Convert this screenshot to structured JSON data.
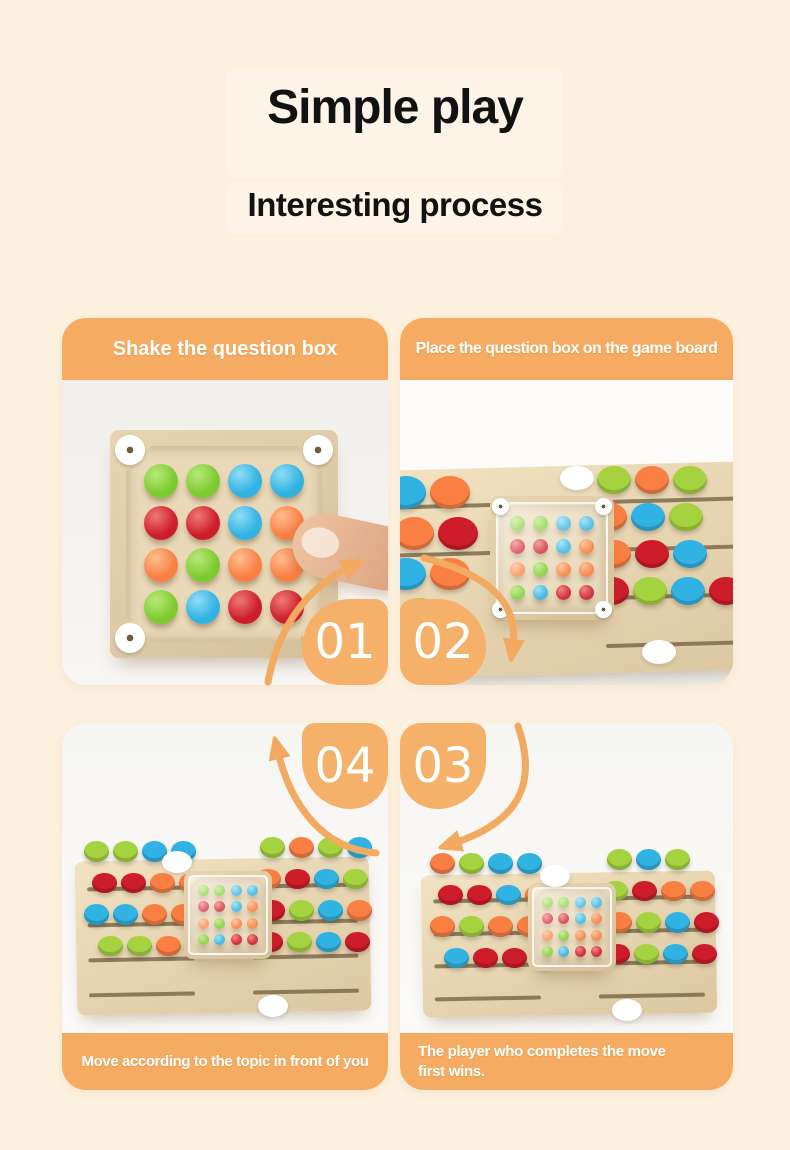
{
  "header": {
    "title": "Simple play",
    "subtitle": "Interesting process"
  },
  "panels": {
    "tl": {
      "number": "01",
      "caption": "Shake the question box"
    },
    "tr": {
      "number": "02",
      "caption": "Place the question box on the game board"
    },
    "bl": {
      "number": "04",
      "caption": "Move according to the topic in front of you"
    },
    "br": {
      "number": "03",
      "caption": "The player who completes the move first wins."
    }
  },
  "question_box_grid": [
    "green",
    "green",
    "blue",
    "blue",
    "red",
    "red",
    "blue",
    "orange",
    "orange",
    "green",
    "orange",
    "orange",
    "green",
    "blue",
    "red",
    "red"
  ],
  "boards": {
    "tr": {
      "left": [
        [
          "blue",
          "orange"
        ],
        [
          "orange",
          "red"
        ],
        [
          "blue",
          "orange"
        ],
        [
          "lime"
        ]
      ],
      "right": [
        [
          "lime",
          "orange",
          "lime"
        ],
        [
          "orange",
          "blue",
          "lime"
        ],
        [
          "orange",
          "red",
          "blue"
        ],
        [
          "red",
          "lime",
          "blue",
          "red"
        ]
      ]
    },
    "bl": {
      "left": [
        [
          "lime",
          "lime",
          "blue",
          "blue"
        ],
        [
          "red",
          "red",
          "orange",
          "orange"
        ],
        [
          "blue",
          "blue",
          "orange",
          "orange"
        ],
        [
          "lime",
          "lime",
          "orange",
          "red"
        ]
      ],
      "right": [
        [
          "lime",
          "orange",
          "lime",
          "blue"
        ],
        [
          "orange",
          "red",
          "blue",
          "lime"
        ],
        [
          "red",
          "lime",
          "blue",
          "orange"
        ],
        [
          "red",
          "lime",
          "blue",
          "red"
        ]
      ]
    },
    "br": {
      "left": [
        [
          "orange",
          "lime",
          "blue",
          "blue"
        ],
        [
          "red",
          "red",
          "blue",
          "orange"
        ],
        [
          "orange",
          "lime",
          "orange",
          "orange"
        ],
        [
          "blue",
          "red",
          "red",
          "orange"
        ]
      ],
      "right": [
        [
          "lime",
          "blue",
          "lime"
        ],
        [
          "lime",
          "red",
          "orange",
          "orange"
        ],
        [
          "orange",
          "lime",
          "blue",
          "red"
        ],
        [
          "red",
          "lime",
          "blue",
          "red"
        ]
      ]
    }
  },
  "palette": {
    "page_bg": "#fcf0de",
    "banner_orange": "#f5ab61",
    "badge_orange": "#f5b169",
    "arrow_orange": "#f2aa60",
    "panel_bg": "#f5f4f1",
    "wood_light": "#f1e2c1",
    "wood_dark": "#dcc7a1",
    "slot_brown": "#6f5d3c",
    "ball": {
      "green": [
        "#7ccb2e",
        "#b9e87a"
      ],
      "lime": [
        "#a5d23f",
        "#d5ec8c"
      ],
      "blue": [
        "#30b2e2",
        "#8fdcf4"
      ],
      "red": [
        "#cd1c2a",
        "#ef7a75"
      ],
      "orange": [
        "#f97f43",
        "#ffbd8e"
      ]
    }
  }
}
